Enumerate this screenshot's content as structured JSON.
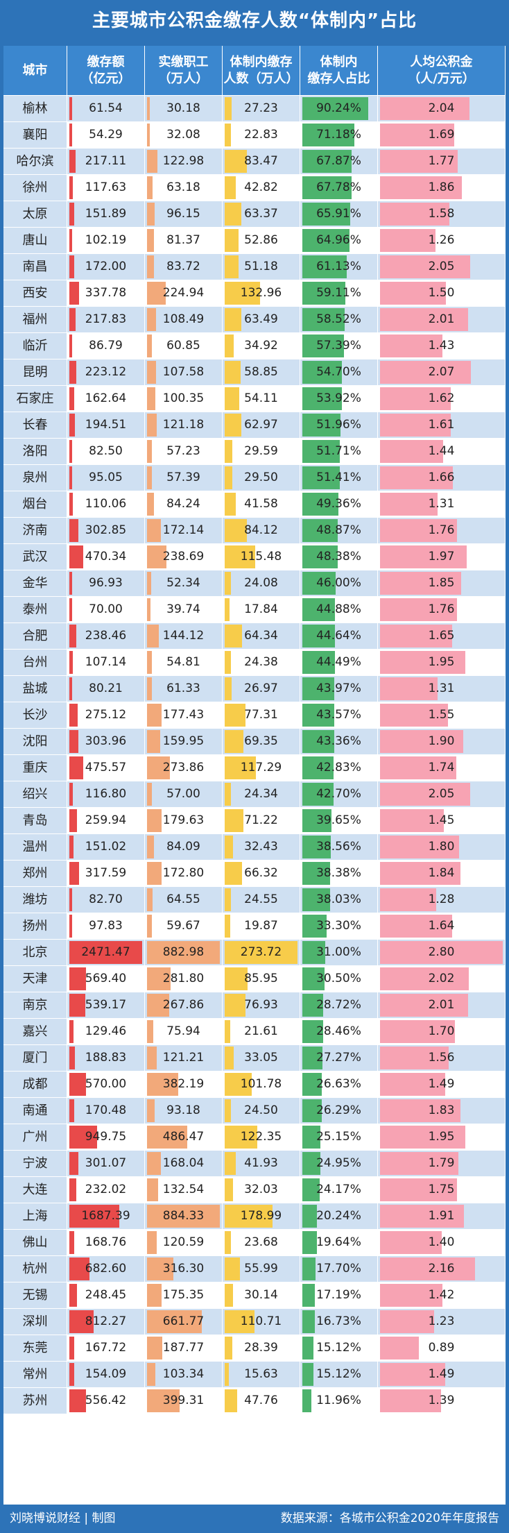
{
  "chart_data": {
    "type": "table",
    "title": "主要城市公积金缴存人数“体制内”占比",
    "columns": [
      {
        "line1": "城市",
        "line2": ""
      },
      {
        "line1": "缴存额",
        "line2": "（亿元）"
      },
      {
        "line1": "实缴职工",
        "line2": "（万人）"
      },
      {
        "line1": "体制内缴存",
        "line2": "人数（万人）"
      },
      {
        "line1": "体制内",
        "line2": "缴存人占比"
      },
      {
        "line1": "人均公积金",
        "line2": "（人/万元）"
      }
    ],
    "bar_colors": [
      "#e84a4a",
      "#f2a97a",
      "#f7cc4a",
      "#4db36d",
      "#f7a3b3"
    ],
    "rows": [
      {
        "city": "榆林",
        "deposit": "61.54",
        "employees": "30.18",
        "gov": "27.23",
        "share": "90.24%",
        "per_capita": "2.04"
      },
      {
        "city": "襄阳",
        "deposit": "54.29",
        "employees": "32.08",
        "gov": "22.83",
        "share": "71.18%",
        "per_capita": "1.69"
      },
      {
        "city": "哈尔滨",
        "deposit": "217.11",
        "employees": "122.98",
        "gov": "83.47",
        "share": "67.87%",
        "per_capita": "1.77"
      },
      {
        "city": "徐州",
        "deposit": "117.63",
        "employees": "63.18",
        "gov": "42.82",
        "share": "67.78%",
        "per_capita": "1.86"
      },
      {
        "city": "太原",
        "deposit": "151.89",
        "employees": "96.15",
        "gov": "63.37",
        "share": "65.91%",
        "per_capita": "1.58"
      },
      {
        "city": "唐山",
        "deposit": "102.19",
        "employees": "81.37",
        "gov": "52.86",
        "share": "64.96%",
        "per_capita": "1.26"
      },
      {
        "city": "南昌",
        "deposit": "172.00",
        "employees": "83.72",
        "gov": "51.18",
        "share": "61.13%",
        "per_capita": "2.05"
      },
      {
        "city": "西安",
        "deposit": "337.78",
        "employees": "224.94",
        "gov": "132.96",
        "share": "59.11%",
        "per_capita": "1.50"
      },
      {
        "city": "福州",
        "deposit": "217.83",
        "employees": "108.49",
        "gov": "63.49",
        "share": "58.52%",
        "per_capita": "2.01"
      },
      {
        "city": "临沂",
        "deposit": "86.79",
        "employees": "60.85",
        "gov": "34.92",
        "share": "57.39%",
        "per_capita": "1.43"
      },
      {
        "city": "昆明",
        "deposit": "223.12",
        "employees": "107.58",
        "gov": "58.85",
        "share": "54.70%",
        "per_capita": "2.07"
      },
      {
        "city": "石家庄",
        "deposit": "162.64",
        "employees": "100.35",
        "gov": "54.11",
        "share": "53.92%",
        "per_capita": "1.62"
      },
      {
        "city": "长春",
        "deposit": "194.51",
        "employees": "121.18",
        "gov": "62.97",
        "share": "51.96%",
        "per_capita": "1.61"
      },
      {
        "city": "洛阳",
        "deposit": "82.50",
        "employees": "57.23",
        "gov": "29.59",
        "share": "51.71%",
        "per_capita": "1.44"
      },
      {
        "city": "泉州",
        "deposit": "95.05",
        "employees": "57.39",
        "gov": "29.50",
        "share": "51.41%",
        "per_capita": "1.66"
      },
      {
        "city": "烟台",
        "deposit": "110.06",
        "employees": "84.24",
        "gov": "41.58",
        "share": "49.36%",
        "per_capita": "1.31"
      },
      {
        "city": "济南",
        "deposit": "302.85",
        "employees": "172.14",
        "gov": "84.12",
        "share": "48.87%",
        "per_capita": "1.76"
      },
      {
        "city": "武汉",
        "deposit": "470.34",
        "employees": "238.69",
        "gov": "115.48",
        "share": "48.38%",
        "per_capita": "1.97"
      },
      {
        "city": "金华",
        "deposit": "96.93",
        "employees": "52.34",
        "gov": "24.08",
        "share": "46.00%",
        "per_capita": "1.85"
      },
      {
        "city": "泰州",
        "deposit": "70.00",
        "employees": "39.74",
        "gov": "17.84",
        "share": "44.88%",
        "per_capita": "1.76"
      },
      {
        "city": "合肥",
        "deposit": "238.46",
        "employees": "144.12",
        "gov": "64.34",
        "share": "44.64%",
        "per_capita": "1.65"
      },
      {
        "city": "台州",
        "deposit": "107.14",
        "employees": "54.81",
        "gov": "24.38",
        "share": "44.49%",
        "per_capita": "1.95"
      },
      {
        "city": "盐城",
        "deposit": "80.21",
        "employees": "61.33",
        "gov": "26.97",
        "share": "43.97%",
        "per_capita": "1.31"
      },
      {
        "city": "长沙",
        "deposit": "275.12",
        "employees": "177.43",
        "gov": "77.31",
        "share": "43.57%",
        "per_capita": "1.55"
      },
      {
        "city": "沈阳",
        "deposit": "303.96",
        "employees": "159.95",
        "gov": "69.35",
        "share": "43.36%",
        "per_capita": "1.90"
      },
      {
        "city": "重庆",
        "deposit": "475.57",
        "employees": "273.86",
        "gov": "117.29",
        "share": "42.83%",
        "per_capita": "1.74"
      },
      {
        "city": "绍兴",
        "deposit": "116.80",
        "employees": "57.00",
        "gov": "24.34",
        "share": "42.70%",
        "per_capita": "2.05"
      },
      {
        "city": "青岛",
        "deposit": "259.94",
        "employees": "179.63",
        "gov": "71.22",
        "share": "39.65%",
        "per_capita": "1.45"
      },
      {
        "city": "温州",
        "deposit": "151.02",
        "employees": "84.09",
        "gov": "32.43",
        "share": "38.56%",
        "per_capita": "1.80"
      },
      {
        "city": "郑州",
        "deposit": "317.59",
        "employees": "172.80",
        "gov": "66.32",
        "share": "38.38%",
        "per_capita": "1.84"
      },
      {
        "city": "潍坊",
        "deposit": "82.70",
        "employees": "64.55",
        "gov": "24.55",
        "share": "38.03%",
        "per_capita": "1.28"
      },
      {
        "city": "扬州",
        "deposit": "97.83",
        "employees": "59.67",
        "gov": "19.87",
        "share": "33.30%",
        "per_capita": "1.64"
      },
      {
        "city": "北京",
        "deposit": "2471.47",
        "employees": "882.98",
        "gov": "273.72",
        "share": "31.00%",
        "per_capita": "2.80"
      },
      {
        "city": "天津",
        "deposit": "569.40",
        "employees": "281.80",
        "gov": "85.95",
        "share": "30.50%",
        "per_capita": "2.02"
      },
      {
        "city": "南京",
        "deposit": "539.17",
        "employees": "267.86",
        "gov": "76.93",
        "share": "28.72%",
        "per_capita": "2.01"
      },
      {
        "city": "嘉兴",
        "deposit": "129.46",
        "employees": "75.94",
        "gov": "21.61",
        "share": "28.46%",
        "per_capita": "1.70"
      },
      {
        "city": "厦门",
        "deposit": "188.83",
        "employees": "121.21",
        "gov": "33.05",
        "share": "27.27%",
        "per_capita": "1.56"
      },
      {
        "city": "成都",
        "deposit": "570.00",
        "employees": "382.19",
        "gov": "101.78",
        "share": "26.63%",
        "per_capita": "1.49"
      },
      {
        "city": "南通",
        "deposit": "170.48",
        "employees": "93.18",
        "gov": "24.50",
        "share": "26.29%",
        "per_capita": "1.83"
      },
      {
        "city": "广州",
        "deposit": "949.75",
        "employees": "486.47",
        "gov": "122.35",
        "share": "25.15%",
        "per_capita": "1.95"
      },
      {
        "city": "宁波",
        "deposit": "301.07",
        "employees": "168.04",
        "gov": "41.93",
        "share": "24.95%",
        "per_capita": "1.79"
      },
      {
        "city": "大连",
        "deposit": "232.02",
        "employees": "132.54",
        "gov": "32.03",
        "share": "24.17%",
        "per_capita": "1.75"
      },
      {
        "city": "上海",
        "deposit": "1687.39",
        "employees": "884.33",
        "gov": "178.99",
        "share": "20.24%",
        "per_capita": "1.91"
      },
      {
        "city": "佛山",
        "deposit": "168.76",
        "employees": "120.59",
        "gov": "23.68",
        "share": "19.64%",
        "per_capita": "1.40"
      },
      {
        "city": "杭州",
        "deposit": "682.60",
        "employees": "316.30",
        "gov": "55.99",
        "share": "17.70%",
        "per_capita": "2.16"
      },
      {
        "city": "无锡",
        "deposit": "248.45",
        "employees": "175.35",
        "gov": "30.14",
        "share": "17.19%",
        "per_capita": "1.42"
      },
      {
        "city": "深圳",
        "deposit": "812.27",
        "employees": "661.77",
        "gov": "110.71",
        "share": "16.73%",
        "per_capita": "1.23"
      },
      {
        "city": "东莞",
        "deposit": "167.72",
        "employees": "187.77",
        "gov": "28.39",
        "share": "15.12%",
        "per_capita": "0.89"
      },
      {
        "city": "常州",
        "deposit": "154.09",
        "employees": "103.34",
        "gov": "15.63",
        "share": "15.12%",
        "per_capita": "1.49"
      },
      {
        "city": "苏州",
        "deposit": "556.42",
        "employees": "399.31",
        "gov": "47.76",
        "share": "11.96%",
        "per_capita": "1.39"
      }
    ]
  },
  "footer": {
    "left": "刘晓博说财经 | 制图",
    "right": "数据来源：各城市公积金2020年年度报告"
  }
}
